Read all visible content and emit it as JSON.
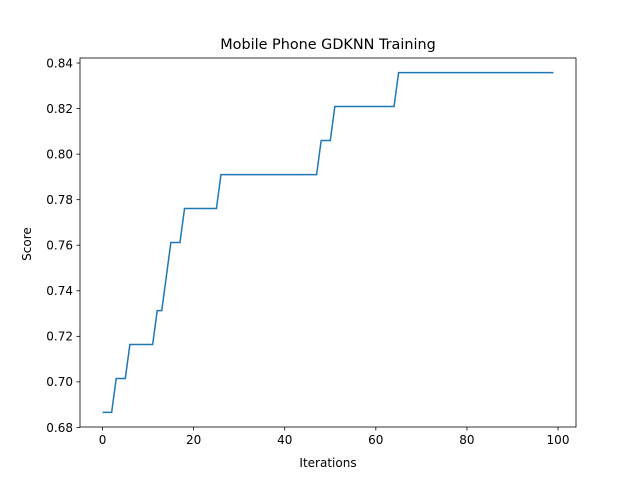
{
  "chart_data": {
    "type": "line",
    "title": "Mobile Phone GDKNN Training",
    "xlabel": "Iterations",
    "ylabel": "Score",
    "xlim": [
      -4.95,
      103.95
    ],
    "ylim": [
      0.6802,
      0.8422
    ],
    "xticks": [
      0,
      20,
      40,
      60,
      80,
      100
    ],
    "yticks": [
      0.68,
      0.7,
      0.72,
      0.74,
      0.76,
      0.78,
      0.8,
      0.82,
      0.84
    ],
    "xtick_labels": [
      "0",
      "20",
      "40",
      "60",
      "80",
      "100"
    ],
    "ytick_labels": [
      "0.68",
      "0.70",
      "0.72",
      "0.74",
      "0.76",
      "0.78",
      "0.80",
      "0.82",
      "0.84"
    ],
    "grid": false,
    "series": [
      {
        "color": "#1f77b4",
        "x": [
          0,
          2,
          3,
          5,
          6,
          11,
          12,
          13,
          15,
          17,
          18,
          25,
          26,
          47,
          48,
          50,
          51,
          64,
          65,
          99
        ],
        "y": [
          0.6866,
          0.6866,
          0.7015,
          0.7015,
          0.7164,
          0.7164,
          0.7313,
          0.7313,
          0.7612,
          0.7612,
          0.7761,
          0.7761,
          0.791,
          0.791,
          0.806,
          0.806,
          0.8209,
          0.8209,
          0.8358,
          0.8358
        ]
      }
    ]
  }
}
